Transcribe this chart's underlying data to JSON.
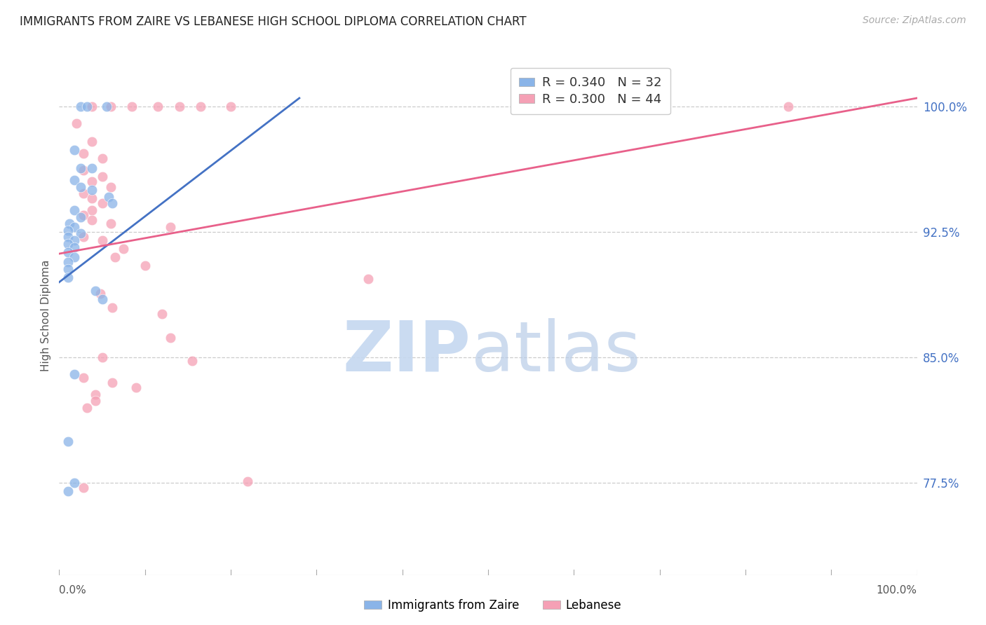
{
  "title": "IMMIGRANTS FROM ZAIRE VS LEBANESE HIGH SCHOOL DIPLOMA CORRELATION CHART",
  "source": "Source: ZipAtlas.com",
  "ylabel": "High School Diploma",
  "y_ticks": [
    0.775,
    0.85,
    0.925,
    1.0
  ],
  "y_tick_labels": [
    "77.5%",
    "85.0%",
    "92.5%",
    "100.0%"
  ],
  "xlim": [
    0.0,
    1.0
  ],
  "ylim": [
    0.72,
    1.03
  ],
  "zaire_color": "#8ab4e8",
  "lebanese_color": "#f5a0b5",
  "zaire_line_color": "#4472c4",
  "lebanese_line_color": "#e8608a",
  "zaire_line": [
    [
      0.0,
      0.895
    ],
    [
      0.28,
      1.005
    ]
  ],
  "lebanese_line": [
    [
      0.0,
      0.912
    ],
    [
      1.0,
      1.005
    ]
  ],
  "zaire_points": [
    [
      0.025,
      1.0
    ],
    [
      0.032,
      1.0
    ],
    [
      0.055,
      1.0
    ],
    [
      0.018,
      0.974
    ],
    [
      0.025,
      0.963
    ],
    [
      0.038,
      0.963
    ],
    [
      0.018,
      0.956
    ],
    [
      0.025,
      0.952
    ],
    [
      0.038,
      0.95
    ],
    [
      0.058,
      0.946
    ],
    [
      0.062,
      0.942
    ],
    [
      0.018,
      0.938
    ],
    [
      0.025,
      0.934
    ],
    [
      0.012,
      0.93
    ],
    [
      0.018,
      0.928
    ],
    [
      0.01,
      0.926
    ],
    [
      0.025,
      0.924
    ],
    [
      0.01,
      0.922
    ],
    [
      0.018,
      0.92
    ],
    [
      0.01,
      0.918
    ],
    [
      0.018,
      0.916
    ],
    [
      0.01,
      0.913
    ],
    [
      0.018,
      0.91
    ],
    [
      0.01,
      0.907
    ],
    [
      0.01,
      0.903
    ],
    [
      0.01,
      0.898
    ],
    [
      0.042,
      0.89
    ],
    [
      0.05,
      0.885
    ],
    [
      0.018,
      0.84
    ],
    [
      0.01,
      0.8
    ],
    [
      0.018,
      0.775
    ],
    [
      0.01,
      0.77
    ]
  ],
  "lebanese_points": [
    [
      0.038,
      1.0
    ],
    [
      0.06,
      1.0
    ],
    [
      0.085,
      1.0
    ],
    [
      0.115,
      1.0
    ],
    [
      0.14,
      1.0
    ],
    [
      0.165,
      1.0
    ],
    [
      0.2,
      1.0
    ],
    [
      0.85,
      1.0
    ],
    [
      0.02,
      0.99
    ],
    [
      0.038,
      0.979
    ],
    [
      0.028,
      0.972
    ],
    [
      0.05,
      0.969
    ],
    [
      0.028,
      0.962
    ],
    [
      0.05,
      0.958
    ],
    [
      0.038,
      0.955
    ],
    [
      0.06,
      0.952
    ],
    [
      0.028,
      0.948
    ],
    [
      0.038,
      0.945
    ],
    [
      0.05,
      0.942
    ],
    [
      0.038,
      0.938
    ],
    [
      0.028,
      0.935
    ],
    [
      0.038,
      0.932
    ],
    [
      0.06,
      0.93
    ],
    [
      0.13,
      0.928
    ],
    [
      0.028,
      0.922
    ],
    [
      0.05,
      0.92
    ],
    [
      0.075,
      0.915
    ],
    [
      0.065,
      0.91
    ],
    [
      0.1,
      0.905
    ],
    [
      0.36,
      0.897
    ],
    [
      0.048,
      0.888
    ],
    [
      0.062,
      0.88
    ],
    [
      0.12,
      0.876
    ],
    [
      0.13,
      0.862
    ],
    [
      0.05,
      0.85
    ],
    [
      0.155,
      0.848
    ],
    [
      0.028,
      0.838
    ],
    [
      0.062,
      0.835
    ],
    [
      0.09,
      0.832
    ],
    [
      0.042,
      0.828
    ],
    [
      0.042,
      0.824
    ],
    [
      0.032,
      0.82
    ],
    [
      0.22,
      0.776
    ],
    [
      0.028,
      0.772
    ]
  ],
  "legend_r_color": "#4472c4",
  "legend_n_color": "#e84040",
  "watermark_zip_color": "#c5d8f0",
  "watermark_atlas_color": "#b8cce8"
}
